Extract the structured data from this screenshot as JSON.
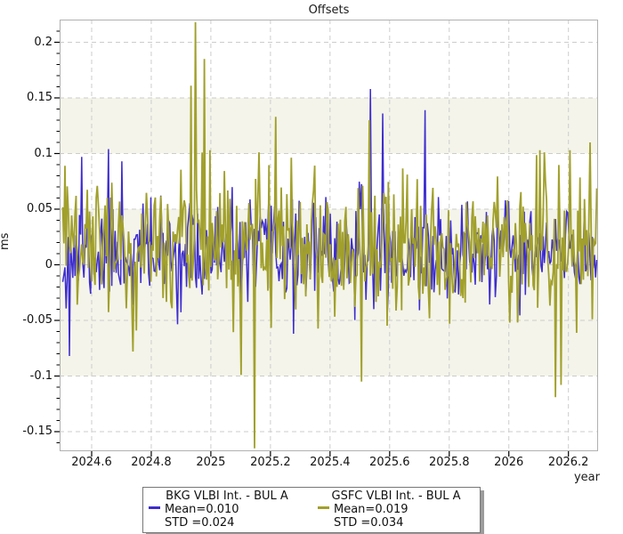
{
  "title": "Offsets",
  "axes": {
    "ylabel": "ms",
    "xlabel": "year"
  },
  "chart_data": {
    "type": "line",
    "title": "Offsets",
    "xlabel": "year",
    "ylabel": "ms",
    "xlim": [
      2024.4925,
      2026.2995
    ],
    "ylim": [
      -0.1676,
      0.2204
    ],
    "grid": true,
    "legend_position": "bottom-center",
    "x_ticks": [
      {
        "v": 2024.6,
        "label": "2024.6"
      },
      {
        "v": 2024.8,
        "label": "2024.8"
      },
      {
        "v": 2025.0,
        "label": "2025"
      },
      {
        "v": 2025.2,
        "label": "2025.2"
      },
      {
        "v": 2025.4,
        "label": "2025.4"
      },
      {
        "v": 2025.6,
        "label": "2025.6"
      },
      {
        "v": 2025.8,
        "label": "2025.8"
      },
      {
        "v": 2026.0,
        "label": "2026"
      },
      {
        "v": 2026.2,
        "label": "2026.2"
      }
    ],
    "y_ticks": [
      {
        "v": 0.2,
        "label": "0.2"
      },
      {
        "v": 0.15,
        "label": "0.15"
      },
      {
        "v": 0.1,
        "label": "0.1"
      },
      {
        "v": 0.05,
        "label": "0.05"
      },
      {
        "v": 0.0,
        "label": "0"
      },
      {
        "v": -0.05,
        "label": "-0.05"
      },
      {
        "v": -0.1,
        "label": "-0.1"
      },
      {
        "v": -0.15,
        "label": "-0.15"
      }
    ],
    "y_minor_step": 0.01,
    "band_color": "#f4f4ea",
    "bands": [
      {
        "y0": 0.1,
        "y1": 0.15
      },
      {
        "y0": -0.1,
        "y1": 0.05
      }
    ],
    "grid_color": "#cccccc",
    "frame_color": "#b0b0b0",
    "series": [
      {
        "name": "BKG VLBI Int. - BUL A",
        "color": "#3d2dce",
        "mean": 0.01,
        "std": 0.024,
        "n_points": 480,
        "seed": 11,
        "t_start": 2024.503,
        "t_end": 2026.295,
        "clamp": [
          -0.058,
          0.097
        ],
        "line_width": 1.5,
        "notable_points": [
          [
            2024.525,
            -0.082
          ],
          [
            2024.565,
            0.097
          ],
          [
            2024.655,
            0.104
          ],
          [
            2024.7,
            0.093
          ],
          [
            2025.278,
            -0.062
          ],
          [
            2025.535,
            0.158
          ],
          [
            2025.578,
            0.136
          ],
          [
            2025.718,
            0.139
          ]
        ]
      },
      {
        "name": "GSFC VLBI Int. - BUL A",
        "color": "#a1a02c",
        "mean": 0.019,
        "std": 0.034,
        "n_points": 480,
        "seed": 29,
        "t_start": 2024.503,
        "t_end": 2026.295,
        "clamp": [
          -0.078,
          0.103
        ],
        "line_width": 1.8,
        "notable_points": [
          [
            2024.51,
            0.089
          ],
          [
            2024.935,
            0.161
          ],
          [
            2024.947,
            0.218
          ],
          [
            2024.977,
            0.185
          ],
          [
            2025.1,
            -0.099
          ],
          [
            2025.146,
            -0.165
          ],
          [
            2025.216,
            0.133
          ],
          [
            2025.505,
            -0.105
          ],
          [
            2025.53,
            0.13
          ],
          [
            2026.156,
            -0.119
          ],
          [
            2026.176,
            -0.108
          ],
          [
            2026.272,
            0.11
          ]
        ]
      }
    ]
  },
  "legend": {
    "entries": [
      {
        "series": "BKG VLBI Int. - BUL A",
        "mean_label": "Mean=0.010",
        "std_label": "STD =0.024",
        "color": "#3d2dce"
      },
      {
        "series": "GSFC VLBI Int. - BUL A",
        "mean_label": "Mean=0.019",
        "std_label": "STD =0.034",
        "color": "#a1a02c"
      }
    ]
  }
}
